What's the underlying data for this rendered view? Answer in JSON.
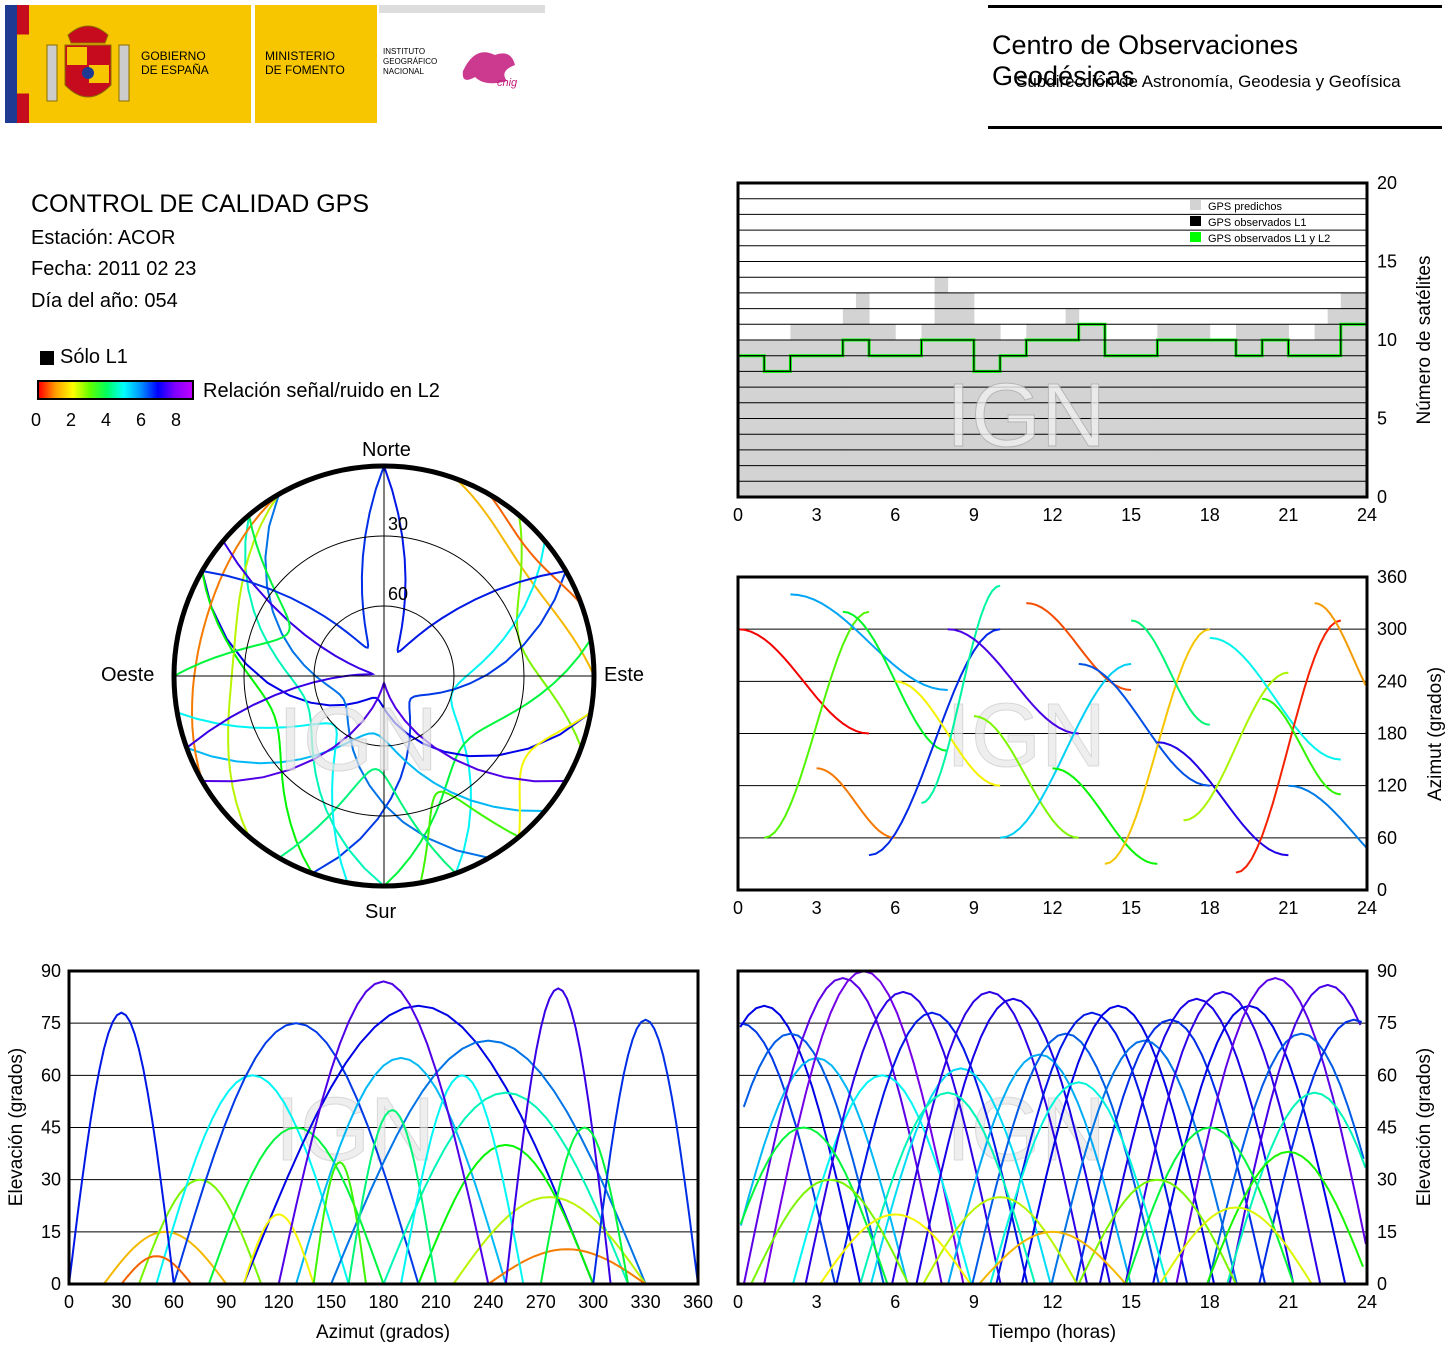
{
  "header": {
    "gov_line1": "GOBIERNO",
    "gov_line2": "DE ESPAÑA",
    "min_line1": "MINISTERIO",
    "min_line2": "DE FOMENTO",
    "ign_line1": "INSTITUTO",
    "ign_line2": "GEOGRÁFICO",
    "ign_line3": "NACIONAL",
    "cnig": "cnig",
    "center_title": "Centro de Observaciones Geodésicas",
    "center_subtitle": "Subdirección de Astronomía, Geodesia y Geofísica"
  },
  "info": {
    "title": "CONTROL DE CALIDAD GPS",
    "station": "Estación: ACOR",
    "date": "Fecha: 2011 02 23",
    "doy": "Día del año: 054",
    "legend_l1": "Sólo L1",
    "legend_snr": "Relación señal/ruido en L2",
    "snr_ticks": [
      "0",
      "2",
      "4",
      "6",
      "8"
    ]
  },
  "watermark": "IGN",
  "colors": {
    "pred_gray": "#d3d3d3",
    "obs_l1": "#000000",
    "obs_l1l2": "#00ff00",
    "frame": "#000000"
  },
  "chart_data": [
    {
      "type": "area",
      "id": "satellite-count",
      "ylabel": "Número de satélites",
      "xlim": [
        0,
        24
      ],
      "ylim": [
        0,
        20
      ],
      "x_ticks": [
        "0",
        "3",
        "6",
        "9",
        "12",
        "15",
        "18",
        "21",
        "24"
      ],
      "y_ticks": [
        "0",
        "5",
        "10",
        "15",
        "20"
      ],
      "legend": [
        "GPS predichos",
        "GPS observados L1",
        "GPS observados L1 y L2"
      ],
      "legend_position": "top-right",
      "series": [
        {
          "name": "GPS predichos",
          "x": [
            0,
            1,
            2,
            3,
            4,
            4.5,
            5,
            6,
            7,
            7.5,
            8,
            9,
            10,
            11,
            12,
            12.5,
            13,
            14,
            15,
            16,
            17,
            18,
            19,
            20,
            21,
            22,
            22.5,
            23,
            24
          ],
          "values": [
            10,
            10,
            11,
            11,
            12,
            13,
            11,
            10,
            11,
            14,
            13,
            11,
            10,
            11,
            11,
            12,
            11,
            10,
            10,
            11,
            11,
            10,
            11,
            11,
            10,
            11,
            12,
            13,
            11
          ]
        },
        {
          "name": "GPS observados L1 y L2",
          "x": [
            0,
            1,
            2,
            3,
            4,
            5,
            6,
            7,
            8,
            9,
            10,
            11,
            12,
            13,
            14,
            15,
            16,
            17,
            18,
            19,
            20,
            21,
            22,
            23,
            24
          ],
          "values": [
            9,
            8,
            9,
            9,
            10,
            9,
            9,
            10,
            10,
            8,
            9,
            10,
            10,
            11,
            9,
            9,
            10,
            10,
            10,
            9,
            10,
            9,
            9,
            11,
            9
          ]
        }
      ]
    },
    {
      "type": "scatter",
      "id": "skyplot",
      "labels": {
        "north": "Norte",
        "south": "Sur",
        "east": "Este",
        "west": "Oeste"
      },
      "rings": [
        "30",
        "60"
      ]
    },
    {
      "type": "scatter",
      "id": "azimuth-time",
      "ylabel": "Azimut (grados)",
      "xlim": [
        0,
        24
      ],
      "ylim": [
        0,
        360
      ],
      "x_ticks": [
        "0",
        "3",
        "6",
        "9",
        "12",
        "15",
        "18",
        "21",
        "24"
      ],
      "y_ticks": [
        "0",
        "60",
        "120",
        "180",
        "240",
        "300",
        "360"
      ]
    },
    {
      "type": "scatter",
      "id": "elevation-azimuth",
      "xlabel": "Azimut (grados)",
      "ylabel": "Elevación (grados)",
      "xlim": [
        0,
        360
      ],
      "ylim": [
        0,
        90
      ],
      "x_ticks": [
        "0",
        "30",
        "60",
        "90",
        "120",
        "150",
        "180",
        "210",
        "240",
        "270",
        "300",
        "330",
        "360"
      ],
      "y_ticks": [
        "0",
        "15",
        "30",
        "45",
        "60",
        "75",
        "90"
      ]
    },
    {
      "type": "scatter",
      "id": "elevation-time",
      "xlabel": "Tiempo (horas)",
      "ylabel": "Elevación (grados)",
      "xlim": [
        0,
        24
      ],
      "ylim": [
        0,
        90
      ],
      "x_ticks": [
        "0",
        "3",
        "6",
        "9",
        "12",
        "15",
        "18",
        "21",
        "24"
      ],
      "y_ticks": [
        "0",
        "15",
        "30",
        "45",
        "60",
        "75",
        "90"
      ]
    }
  ]
}
